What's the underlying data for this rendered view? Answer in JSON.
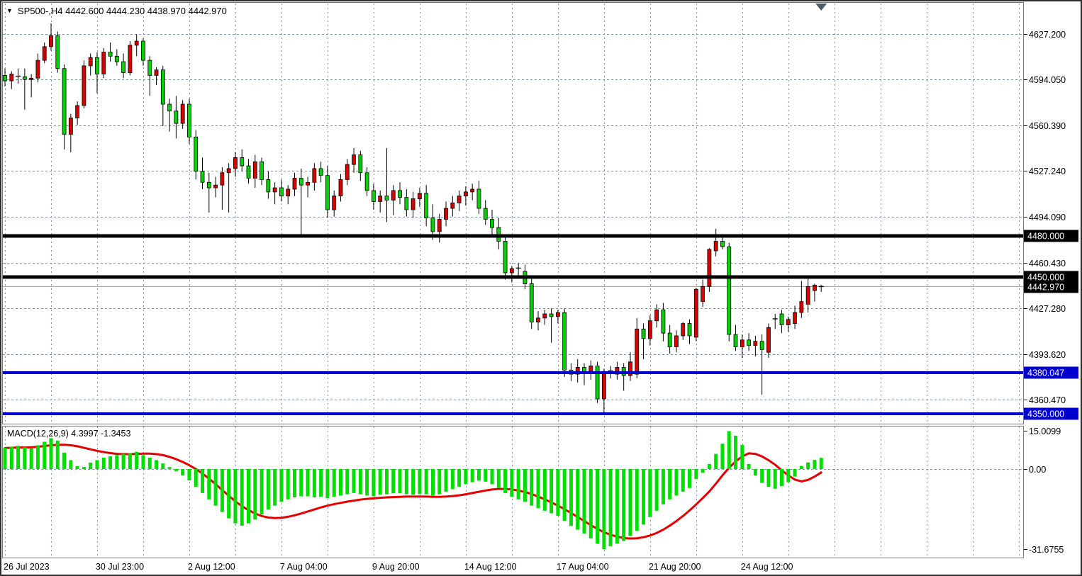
{
  "header": {
    "collapse_icon": "▼",
    "title": "SP500-,H4 4442.600 4444.230 4438.970 4442.970",
    "symbol": "SP500-",
    "timeframe": "H4"
  },
  "price_axis": {
    "ticks": [
      {
        "label": "4627.200",
        "value": 4627.2
      },
      {
        "label": "4594.050",
        "value": 4594.05
      },
      {
        "label": "4560.390",
        "value": 4560.39
      },
      {
        "label": "4527.240",
        "value": 4527.24
      },
      {
        "label": "4494.090",
        "value": 4494.09
      },
      {
        "label": "4460.430",
        "value": 4460.43
      },
      {
        "label": "4427.280",
        "value": 4427.28
      },
      {
        "label": "4393.620",
        "value": 4393.62
      },
      {
        "label": "4360.470",
        "value": 4360.47
      }
    ]
  },
  "horizontal_lines": [
    {
      "label": "4480.000",
      "value": 4480.0,
      "color": "#000000",
      "thickness": 5
    },
    {
      "label": "4450.000",
      "value": 4450.0,
      "color": "#000000",
      "thickness": 5
    },
    {
      "label": "4380.047",
      "value": 4380.047,
      "color": "#0000CC",
      "thickness": 4
    },
    {
      "label": "4350.000",
      "value": 4350.0,
      "color": "#0000CC",
      "thickness": 4
    }
  ],
  "current_price": {
    "label": "4442.970",
    "value": 4442.97
  },
  "macd_panel": {
    "label": "MACD(12,26,9) 4.3997 -1.3453",
    "ticks": [
      {
        "label": "15.0099",
        "value": 15.0099
      },
      {
        "label": "0.00",
        "value": 0
      },
      {
        "label": "-31.6755",
        "value": -31.6755
      }
    ]
  },
  "colors": {
    "bull_candle": "#D90000",
    "bear_candle": "#00D300",
    "wick": "#000000",
    "histogram": "#00DF00",
    "signal_line": "#E60000",
    "grid": "#8092A4",
    "panel_border": "#7a7a7a",
    "current_price_line": "#9a9a9a",
    "badge_black_bg": "#000000",
    "badge_blue_bg": "#0000CC",
    "badge_text": "#ffffff",
    "shift_marker": "#4D5D6D",
    "text": "#000000",
    "background": "#ffffff"
  },
  "chart_data": {
    "type": "candlestick",
    "title": "SP500- H4",
    "ohlc_current": {
      "open": 4442.6,
      "high": 4444.23,
      "low": 4438.97,
      "close": 4442.97
    },
    "x_labels": [
      {
        "label": "26 Jul 2023",
        "candle_index": 0
      },
      {
        "label": "30 Jul 23:00",
        "candle_index": 14
      },
      {
        "label": "2 Aug 12:00",
        "candle_index": 28
      },
      {
        "label": "7 Aug 04:00",
        "candle_index": 42
      },
      {
        "label": "9 Aug 20:00",
        "candle_index": 56
      },
      {
        "label": "14 Aug 12:00",
        "candle_index": 70
      },
      {
        "label": "17 Aug 04:00",
        "candle_index": 84
      },
      {
        "label": "21 Aug 20:00",
        "candle_index": 98
      },
      {
        "label": "24 Aug 12:00",
        "candle_index": 112
      }
    ],
    "candles": [
      [
        4597,
        4602,
        4589,
        4593
      ],
      [
        4593,
        4600,
        4587,
        4598
      ],
      [
        4596,
        4602,
        4591,
        4596.4
      ],
      [
        4596,
        4602,
        4572,
        4594
      ],
      [
        4594,
        4598,
        4581,
        4595
      ],
      [
        4595,
        4613,
        4592,
        4608
      ],
      [
        4608,
        4621,
        4606,
        4618
      ],
      [
        4618,
        4635,
        4615,
        4626
      ],
      [
        4626,
        4629,
        4599,
        4602
      ],
      [
        4602,
        4605,
        4543,
        4554
      ],
      [
        4554,
        4569,
        4541,
        4566
      ],
      [
        4566,
        4578,
        4561,
        4575
      ],
      [
        4575,
        4608,
        4573,
        4604
      ],
      [
        4604,
        4613,
        4597,
        4610
      ],
      [
        4610,
        4614,
        4584,
        4598
      ],
      [
        4598,
        4617,
        4595,
        4614
      ],
      [
        4614,
        4621,
        4607,
        4611
      ],
      [
        4611,
        4616,
        4604,
        4607
      ],
      [
        4607,
        4613,
        4595,
        4599
      ],
      [
        4599,
        4622,
        4597,
        4619
      ],
      [
        4619,
        4627,
        4611,
        4622
      ],
      [
        4622,
        4624,
        4604,
        4608
      ],
      [
        4608,
        4611,
        4582,
        4597
      ],
      [
        4597,
        4603,
        4590,
        4601
      ],
      [
        4601,
        4604,
        4560,
        4576
      ],
      [
        4576,
        4580,
        4556,
        4571
      ],
      [
        4571,
        4582,
        4551,
        4562
      ],
      [
        4562,
        4579,
        4558,
        4576
      ],
      [
        4576,
        4580,
        4547,
        4552
      ],
      [
        4552,
        4557,
        4521,
        4527
      ],
      [
        4527,
        4537,
        4514,
        4519
      ],
      [
        4519,
        4526,
        4497,
        4515
      ],
      [
        4515,
        4523,
        4508,
        4517
      ],
      [
        4517,
        4530,
        4499,
        4526
      ],
      [
        4526,
        4533,
        4497,
        4529
      ],
      [
        4529,
        4541,
        4523,
        4537
      ],
      [
        4537,
        4543,
        4527,
        4531
      ],
      [
        4531,
        4536,
        4518,
        4522
      ],
      [
        4522,
        4539,
        4515,
        4534
      ],
      [
        4534,
        4537,
        4517,
        4521
      ],
      [
        4521,
        4527,
        4507,
        4512
      ],
      [
        4512,
        4519,
        4503,
        4515
      ],
      [
        4515,
        4521,
        4505,
        4509
      ],
      [
        4509,
        4517,
        4503,
        4514
      ],
      [
        4514,
        4526,
        4509,
        4522
      ],
      [
        4522,
        4529,
        4481,
        4517
      ],
      [
        4517,
        4523,
        4508,
        4519
      ],
      [
        4519,
        4533,
        4513,
        4529
      ],
      [
        4529,
        4534,
        4519,
        4524
      ],
      [
        4524,
        4531,
        4493,
        4499
      ],
      [
        4499,
        4513,
        4494,
        4509
      ],
      [
        4509,
        4525,
        4505,
        4521
      ],
      [
        4521,
        4536,
        4517,
        4532
      ],
      [
        4532,
        4544,
        4526,
        4539
      ],
      [
        4539,
        4542,
        4520,
        4526
      ],
      [
        4526,
        4530,
        4509,
        4513
      ],
      [
        4513,
        4518,
        4499,
        4505
      ],
      [
        4505,
        4513,
        4497,
        4509
      ],
      [
        4509,
        4544,
        4490,
        4506
      ],
      [
        4506,
        4517,
        4495,
        4513
      ],
      [
        4513,
        4519,
        4503,
        4508
      ],
      [
        4508,
        4514,
        4494,
        4499
      ],
      [
        4499,
        4512,
        4493,
        4507
      ],
      [
        4507,
        4515,
        4501,
        4511
      ],
      [
        4511,
        4517,
        4487,
        4493
      ],
      [
        4493,
        4503,
        4477,
        4483
      ],
      [
        4483,
        4496,
        4475,
        4492
      ],
      [
        4492,
        4505,
        4487,
        4500
      ],
      [
        4500,
        4509,
        4494,
        4504
      ],
      [
        4504,
        4513,
        4498,
        4509
      ],
      [
        4509,
        4516,
        4502,
        4512
      ],
      [
        4512,
        4518,
        4506,
        4514
      ],
      [
        4514,
        4520,
        4496,
        4500
      ],
      [
        4500,
        4506,
        4488,
        4492
      ],
      [
        4492,
        4499,
        4481,
        4486
      ],
      [
        4486,
        4493,
        4470,
        4476
      ],
      [
        4476,
        4480,
        4448,
        4453
      ],
      [
        4453,
        4458,
        4446,
        4456
      ],
      [
        4456,
        4460,
        4450,
        4456.4
      ],
      [
        4454,
        4459,
        4441,
        4445
      ],
      [
        4445,
        4451,
        4412,
        4417
      ],
      [
        4417,
        4425,
        4411,
        4420
      ],
      [
        4420,
        4426,
        4415,
        4423
      ],
      [
        4423,
        4427,
        4402,
        4421
      ],
      [
        4421,
        4426,
        4416,
        4424
      ],
      [
        4424,
        4427,
        4377,
        4382
      ],
      [
        4382,
        4387,
        4374,
        4379
      ],
      [
        4379,
        4390,
        4373,
        4384
      ],
      [
        4384,
        4387,
        4371,
        4380
      ],
      [
        4380,
        4389,
        4375,
        4385
      ],
      [
        4385,
        4388,
        4358,
        4361
      ],
      [
        4361,
        4383,
        4351,
        4381
      ],
      [
        4381,
        4385,
        4376,
        4381.4
      ],
      [
        4379,
        4388,
        4375,
        4384
      ],
      [
        4384,
        4387,
        4367,
        4378
      ],
      [
        4378,
        4395,
        4374,
        4388
      ],
      [
        4379,
        4420,
        4376,
        4412
      ],
      [
        4412,
        4416,
        4390,
        4405
      ],
      [
        4405,
        4422,
        4400,
        4418
      ],
      [
        4418,
        4430,
        4413,
        4426
      ],
      [
        4426,
        4431,
        4403,
        4409
      ],
      [
        4409,
        4415,
        4394,
        4399
      ],
      [
        4399,
        4411,
        4395,
        4407
      ],
      [
        4407,
        4417,
        4404,
        4416
      ],
      [
        4416,
        4419,
        4401,
        4407
      ],
      [
        4406,
        4442,
        4403,
        4441
      ],
      [
        4432,
        4448,
        4428,
        4443
      ],
      [
        4443,
        4471,
        4439,
        4470
      ],
      [
        4469,
        4485,
        4465,
        4476
      ],
      [
        4476,
        4479,
        4470,
        4472
      ],
      [
        4472,
        4475,
        4403,
        4408
      ],
      [
        4408,
        4415,
        4396,
        4399
      ],
      [
        4399,
        4408,
        4391,
        4404
      ],
      [
        4404,
        4409,
        4396,
        4400
      ],
      [
        4400,
        4407,
        4392,
        4403
      ],
      [
        4403,
        4408,
        4364,
        4397
      ],
      [
        4395,
        4416,
        4391,
        4413
      ],
      [
        4419,
        4423,
        4412,
        4419.4
      ],
      [
        4423,
        4426,
        4409,
        4415
      ],
      [
        4415,
        4421,
        4410,
        4419
      ],
      [
        4416,
        4429,
        4412,
        4424
      ],
      [
        4424,
        4447,
        4420,
        4432
      ],
      [
        4430,
        4449,
        4424,
        4443
      ],
      [
        4440,
        4445,
        4432,
        4444
      ],
      [
        4442.6,
        4444.2,
        4439.0,
        4442.97
      ]
    ],
    "indicator": {
      "name": "MACD",
      "params": [
        12,
        26,
        9
      ],
      "last_histogram": 4.3997,
      "last_signal": -1.3453,
      "histogram": [
        8.4,
        8.8,
        9.2,
        8.6,
        8.2,
        9.4,
        10.8,
        12.2,
        11.2,
        6.5,
        3.5,
        1.2,
        0.8,
        2.5,
        3.5,
        4.5,
        5.0,
        5.5,
        6.0,
        6.3,
        6.8,
        5.5,
        4.5,
        3.5,
        2.2,
        0.8,
        -0.8,
        -2.5,
        -4.5,
        -7.0,
        -9.5,
        -12.0,
        -14.5,
        -17.0,
        -19.5,
        -21.5,
        -22.4,
        -21.5,
        -20.0,
        -18.0,
        -16.0,
        -14.5,
        -13.0,
        -12.0,
        -11.2,
        -10.8,
        -10.8,
        -11.2,
        -11.0,
        -11.5,
        -11.0,
        -10.5,
        -10.0,
        -9.5,
        -10.0,
        -10.5,
        -10.8,
        -10.2,
        -10.0,
        -9.6,
        -9.6,
        -10.0,
        -10.2,
        -9.8,
        -10.0,
        -10.5,
        -10.0,
        -9.0,
        -8.0,
        -7.0,
        -6.0,
        -5.2,
        -4.6,
        -5.0,
        -6.0,
        -7.5,
        -9.5,
        -11.0,
        -12.0,
        -13.0,
        -14.5,
        -15.5,
        -16.5,
        -17.5,
        -18.5,
        -20.5,
        -22.5,
        -24.0,
        -25.5,
        -27.5,
        -29.5,
        -31.7,
        -30.5,
        -29.5,
        -28.5,
        -26.5,
        -24.5,
        -22.0,
        -19.0,
        -16.5,
        -14.0,
        -12.0,
        -10.5,
        -9.0,
        -7.5,
        -4.0,
        -1.5,
        2.0,
        6.0,
        10.0,
        15.0,
        13.2,
        9.5,
        2.0,
        -2.5,
        -5.5,
        -7.0,
        -7.8,
        -6.8,
        -5.2,
        -3.0,
        1.2,
        2.6,
        3.6,
        4.3997
      ],
      "signal": [
        8.3,
        8.4,
        8.5,
        8.5,
        8.6,
        8.8,
        9.1,
        9.4,
        9.6,
        9.6,
        9.4,
        9.0,
        8.4,
        7.8,
        7.2,
        6.7,
        6.3,
        6.0,
        5.9,
        5.9,
        6.0,
        6.1,
        6.1,
        5.9,
        5.5,
        4.8,
        3.9,
        2.8,
        1.5,
        0.0,
        -1.8,
        -3.8,
        -6.0,
        -8.3,
        -10.6,
        -12.8,
        -14.7,
        -16.3,
        -17.6,
        -18.6,
        -19.2,
        -19.4,
        -19.3,
        -18.9,
        -18.3,
        -17.6,
        -16.8,
        -16.0,
        -15.2,
        -14.5,
        -13.9,
        -13.4,
        -12.9,
        -12.5,
        -12.1,
        -11.8,
        -11.6,
        -11.4,
        -11.2,
        -11.1,
        -11.0,
        -10.9,
        -10.9,
        -10.9,
        -10.9,
        -11.0,
        -11.0,
        -10.9,
        -10.7,
        -10.4,
        -10.0,
        -9.5,
        -9.0,
        -8.5,
        -8.1,
        -7.9,
        -7.9,
        -8.1,
        -8.5,
        -9.1,
        -9.9,
        -10.9,
        -12.0,
        -13.2,
        -14.5,
        -15.9,
        -17.4,
        -19.0,
        -20.6,
        -22.2,
        -23.7,
        -25.0,
        -26.0,
        -26.8,
        -27.3,
        -27.5,
        -27.4,
        -27.0,
        -26.3,
        -25.3,
        -24.0,
        -22.4,
        -20.6,
        -18.6,
        -16.4,
        -14.0,
        -11.5,
        -8.9,
        -5.8,
        -2.5,
        0.5,
        3.0,
        5.0,
        6.2,
        6.0,
        5.0,
        3.5,
        1.7,
        -0.5,
        -2.5,
        -4.2,
        -4.9,
        -4.3,
        -3.0,
        -1.3453
      ]
    }
  }
}
